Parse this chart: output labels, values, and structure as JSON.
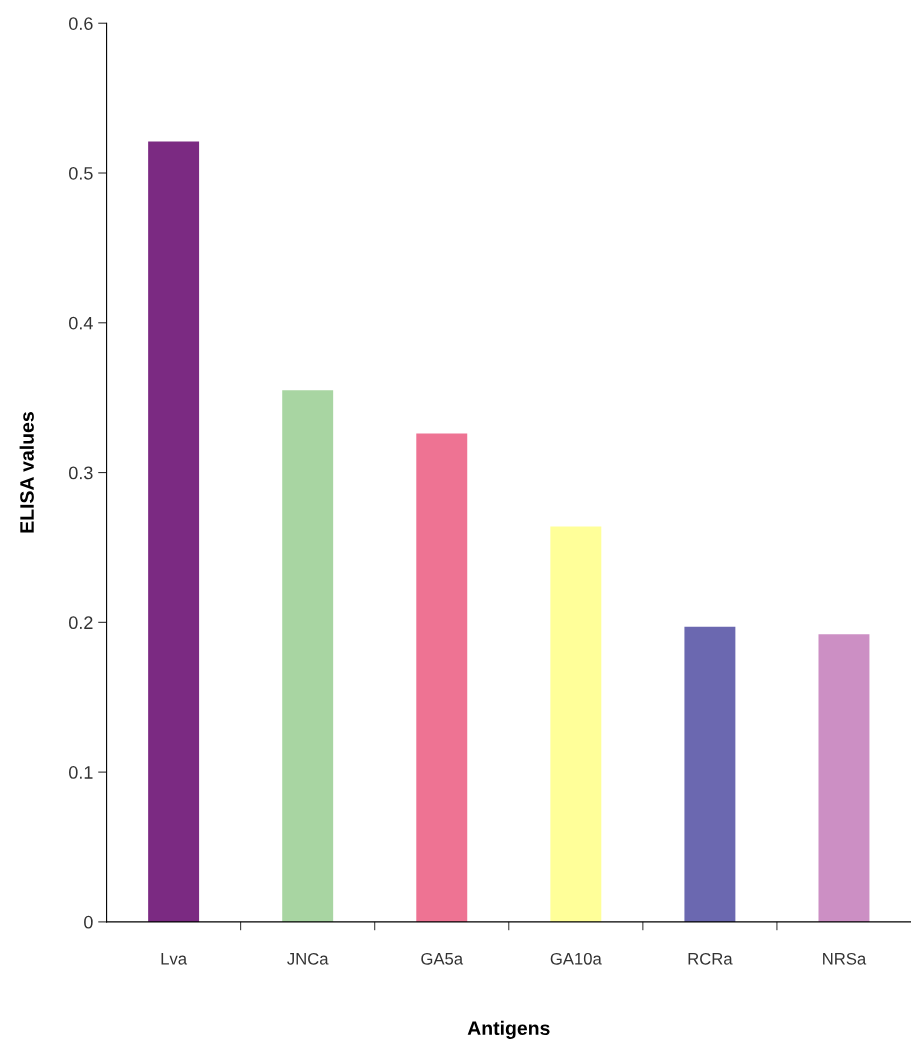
{
  "chart_data": {
    "type": "bar",
    "xlabel": "Antigens",
    "ylabel": "ELISA values",
    "categories": [
      "Lva",
      "JNCa",
      "GA5a",
      "GA10a",
      "RCRa",
      "NRSa"
    ],
    "values": [
      0.521,
      0.355,
      0.326,
      0.264,
      0.197,
      0.192
    ],
    "colors": [
      "#7b2a82",
      "#a8d5a2",
      "#ee7393",
      "#ffff99",
      "#6b68b0",
      "#cc8fc4"
    ],
    "ylim": [
      0,
      0.6
    ],
    "yticks": [
      0,
      0.1,
      0.2,
      0.3,
      0.4,
      0.5,
      0.6
    ],
    "grid": false,
    "legend": false
  }
}
